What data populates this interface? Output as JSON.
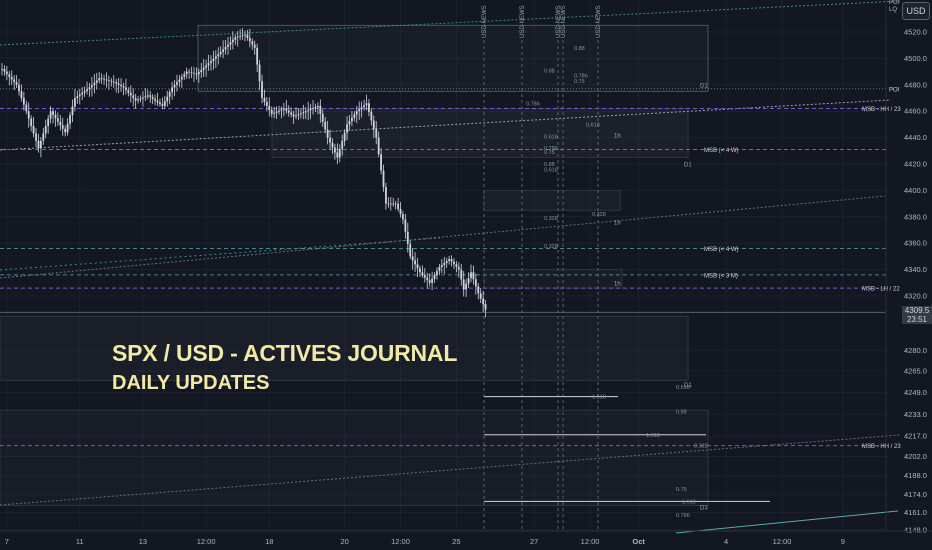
{
  "header": {
    "currency": "USD",
    "axis_corner": [
      "POI",
      "LQ"
    ]
  },
  "overlay": {
    "title": "SPX / USD - ACTIVES JOURNAL",
    "subtitle": "DAILY UPDATES"
  },
  "current_price": {
    "price": "4309.5",
    "countdown": "23:51"
  },
  "colors": {
    "background": "#131722",
    "candle": "#d1d4dc",
    "grid": "#1e2230",
    "purple": "#7b52d8",
    "teal": "#5fa8a8",
    "overlay_text": "#f3e9a6"
  },
  "chart_data": {
    "type": "candlestick",
    "symbol": "SPX / USD",
    "ylim": [
      4140,
      4530
    ],
    "y_ticks": [
      4520.0,
      4500.0,
      4480.0,
      4460.0,
      4440.0,
      4420.0,
      4400.0,
      4380.0,
      4360.0,
      4340.0,
      4320.0,
      4280.0,
      4265.0,
      4249.0,
      4233.0,
      4217.0,
      4202.0,
      4188.0,
      4174.0,
      4161.0,
      4148.0
    ],
    "x_ticks": [
      {
        "label": "7",
        "idx": 2
      },
      {
        "label": "11",
        "idx": 32
      },
      {
        "label": "13",
        "idx": 58
      },
      {
        "label": "12:00",
        "idx": 84
      },
      {
        "label": "18",
        "idx": 110
      },
      {
        "label": "20",
        "idx": 141
      },
      {
        "label": "12:00",
        "idx": 164
      },
      {
        "label": "25",
        "idx": 187
      },
      {
        "label": "27",
        "idx": 219
      },
      {
        "label": "12:00",
        "idx": 242
      },
      {
        "label": "Oct",
        "idx": 262
      },
      {
        "label": "4",
        "idx": 298
      },
      {
        "label": "12:00",
        "idx": 321
      },
      {
        "label": "9",
        "idx": 346
      }
    ],
    "price_path": [
      [
        0,
        4492
      ],
      [
        6,
        4480
      ],
      [
        10,
        4460
      ],
      [
        15,
        4432
      ],
      [
        20,
        4460
      ],
      [
        26,
        4444
      ],
      [
        30,
        4470
      ],
      [
        36,
        4478
      ],
      [
        40,
        4485
      ],
      [
        46,
        4482
      ],
      [
        50,
        4478
      ],
      [
        55,
        4468
      ],
      [
        60,
        4472
      ],
      [
        66,
        4464
      ],
      [
        70,
        4478
      ],
      [
        76,
        4490
      ],
      [
        80,
        4488
      ],
      [
        86,
        4498
      ],
      [
        90,
        4505
      ],
      [
        96,
        4516
      ],
      [
        100,
        4518
      ],
      [
        104,
        4508
      ],
      [
        107,
        4470
      ],
      [
        111,
        4458
      ],
      [
        116,
        4462
      ],
      [
        120,
        4456
      ],
      [
        125,
        4460
      ],
      [
        130,
        4464
      ],
      [
        134,
        4440
      ],
      [
        138,
        4425
      ],
      [
        142,
        4450
      ],
      [
        146,
        4460
      ],
      [
        150,
        4466
      ],
      [
        154,
        4440
      ],
      [
        158,
        4390
      ],
      [
        162,
        4390
      ],
      [
        165,
        4378
      ],
      [
        168,
        4350
      ],
      [
        172,
        4338
      ],
      [
        176,
        4330
      ],
      [
        180,
        4342
      ],
      [
        184,
        4348
      ],
      [
        188,
        4340
      ],
      [
        190,
        4325
      ],
      [
        193,
        4338
      ],
      [
        196,
        4322
      ],
      [
        199,
        4310
      ]
    ],
    "horizontal_levels": [
      {
        "label": "MSB - HH / 23",
        "price": 4462,
        "style": "dashed",
        "color": "#7b52d8"
      },
      {
        "label": "MSB - LH / 22",
        "price": 4326,
        "style": "dashed",
        "color": "#7b52d8"
      },
      {
        "label": "MSB - HH / 23",
        "price": 4210,
        "style": "dashed",
        "color": "#7b52d8"
      },
      {
        "label": "MSB (< 4 W)",
        "price": 4431,
        "style": "dashed",
        "color": "#3d8a8a"
      },
      {
        "label": "MSB (< 4 W)",
        "price": 4356,
        "style": "dashed",
        "color": "#3d8a8a"
      },
      {
        "label": "MSB (< 3 M)",
        "price": 4336,
        "style": "dashed",
        "color": "#3d8a8a"
      },
      {
        "label": "POI",
        "price": 4477,
        "style": "dotted",
        "color": "#777"
      }
    ],
    "news_markers": [
      "USD-NEWS",
      "USD-NEWS",
      "USD-NEWS",
      "USD-NEWS",
      "USD-NEWS"
    ],
    "fib_labels": [
      {
        "label": "0.88",
        "price": 4508,
        "pos": 0.6
      },
      {
        "label": "0.88",
        "price": 4491,
        "pos": 0.55
      },
      {
        "label": "0.786",
        "price": 4487,
        "pos": 0.6
      },
      {
        "label": "0.75",
        "price": 4483,
        "pos": 0.6
      },
      {
        "label": "0.786",
        "price": 4466,
        "pos": 0.52
      },
      {
        "label": "0.618",
        "price": 4450,
        "pos": 0.62
      },
      {
        "label": "0.618",
        "price": 4441,
        "pos": 0.55
      },
      {
        "label": "0.786",
        "price": 4432,
        "pos": 0.55
      },
      {
        "label": "0.75",
        "price": 4429,
        "pos": 0.55
      },
      {
        "label": "0.88",
        "price": 4420,
        "pos": 0.55
      },
      {
        "label": "0.618",
        "price": 4416,
        "pos": 0.55
      },
      {
        "label": "0.328",
        "price": 4382,
        "pos": 0.63
      },
      {
        "label": "0.328",
        "price": 4379,
        "pos": 0.55
      },
      {
        "label": "0.328",
        "price": 4358,
        "pos": 0.55
      },
      {
        "label": "1.618",
        "price": 4246,
        "pos": 0.63
      },
      {
        "label": "0.618",
        "price": 4253,
        "pos": 0.77
      },
      {
        "label": "0.88",
        "price": 4235,
        "pos": 0.77
      },
      {
        "label": "1.618",
        "price": 4218,
        "pos": 0.72
      },
      {
        "label": "0.328",
        "price": 4210,
        "pos": 0.8
      },
      {
        "label": "0.75",
        "price": 4178,
        "pos": 0.77
      },
      {
        "label": "1.618",
        "price": 4169,
        "pos": 0.78
      },
      {
        "label": "0.786",
        "price": 4159,
        "pos": 0.77
      }
    ],
    "zone_labels": [
      "D1",
      "D1",
      "D1",
      "D3",
      "1h",
      "1h",
      "1h"
    ]
  }
}
